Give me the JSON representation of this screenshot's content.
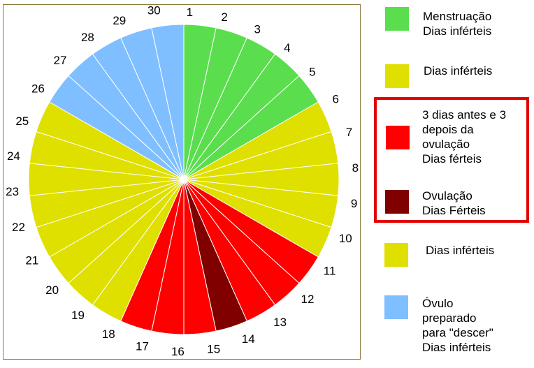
{
  "chart_data": {
    "type": "pie",
    "title": "",
    "slices": [
      {
        "day": "1",
        "category": "menstruation"
      },
      {
        "day": "2",
        "category": "menstruation"
      },
      {
        "day": "3",
        "category": "menstruation"
      },
      {
        "day": "4",
        "category": "menstruation"
      },
      {
        "day": "5",
        "category": "menstruation"
      },
      {
        "day": "6",
        "category": "infertile"
      },
      {
        "day": "7",
        "category": "infertile"
      },
      {
        "day": "8",
        "category": "infertile"
      },
      {
        "day": "9",
        "category": "infertile"
      },
      {
        "day": "10",
        "category": "infertile"
      },
      {
        "day": "11",
        "category": "fertile"
      },
      {
        "day": "12",
        "category": "fertile"
      },
      {
        "day": "13",
        "category": "fertile"
      },
      {
        "day": "14",
        "category": "ovulation"
      },
      {
        "day": "15",
        "category": "fertile"
      },
      {
        "day": "16",
        "category": "fertile"
      },
      {
        "day": "17",
        "category": "fertile"
      },
      {
        "day": "18",
        "category": "infertile"
      },
      {
        "day": "19",
        "category": "infertile"
      },
      {
        "day": "20",
        "category": "infertile"
      },
      {
        "day": "21",
        "category": "infertile"
      },
      {
        "day": "22",
        "category": "infertile"
      },
      {
        "day": "23",
        "category": "infertile"
      },
      {
        "day": "24",
        "category": "infertile"
      },
      {
        "day": "25",
        "category": "infertile"
      },
      {
        "day": "26",
        "category": "ovum"
      },
      {
        "day": "27",
        "category": "ovum"
      },
      {
        "day": "28",
        "category": "ovum"
      },
      {
        "day": "29",
        "category": "ovum"
      },
      {
        "day": "30",
        "category": "ovum"
      }
    ],
    "legend": [
      {
        "key": "menstruation",
        "lines": [
          "Menstruação",
          "Dias inférteis"
        ]
      },
      {
        "key": "infertile",
        "lines": [
          "Dias inférteis"
        ]
      },
      {
        "key": "fertile",
        "lines": [
          "3 dias antes e 3",
          "depois da",
          "ovulação",
          "Dias férteis"
        ]
      },
      {
        "key": "ovulation",
        "lines": [
          "Ovulação",
          "Dias Férteis"
        ]
      },
      {
        "key": "infertile",
        "lines": [
          "Dias inférteis"
        ]
      },
      {
        "key": "ovum",
        "lines": [
          "Óvulo",
          "preparado",
          "para \"descer\"",
          "Dias inférteis"
        ]
      }
    ]
  },
  "colors": {
    "menstruation": "#5ade4e",
    "infertile": "#dfdf00",
    "fertile": "#ff0000",
    "ovulation": "#800000",
    "ovum": "#80bfff",
    "highlight": "#e30000"
  }
}
